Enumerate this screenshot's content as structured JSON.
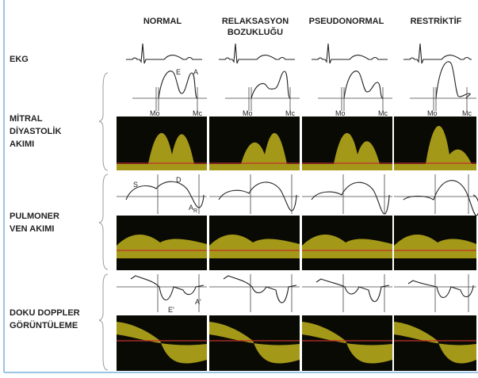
{
  "columns": [
    [
      "NORMAL"
    ],
    [
      "RELAKSASYON",
      "BOZUKLUĞU"
    ],
    [
      "PSEUDONORMAL"
    ],
    [
      "RESTRİKTİF"
    ]
  ],
  "rows": [
    [
      "EKG"
    ],
    [
      "MİTRAL",
      "DİYASTOLİK",
      "AKIMI"
    ],
    [
      "PULMONER",
      "VEN AKIMI"
    ],
    [
      "DOKU DOPPLER",
      "GÖRÜNTÜLEME"
    ]
  ],
  "annotations": {
    "mitral": {
      "e": "E",
      "a": "A",
      "mo": "Mo",
      "mc": "Mc"
    },
    "pulmonary": {
      "s": "S",
      "d": "D",
      "ar": {
        "base": "A",
        "sub": "R"
      }
    },
    "tissue": {
      "e": "E'",
      "a": "A'"
    }
  }
}
